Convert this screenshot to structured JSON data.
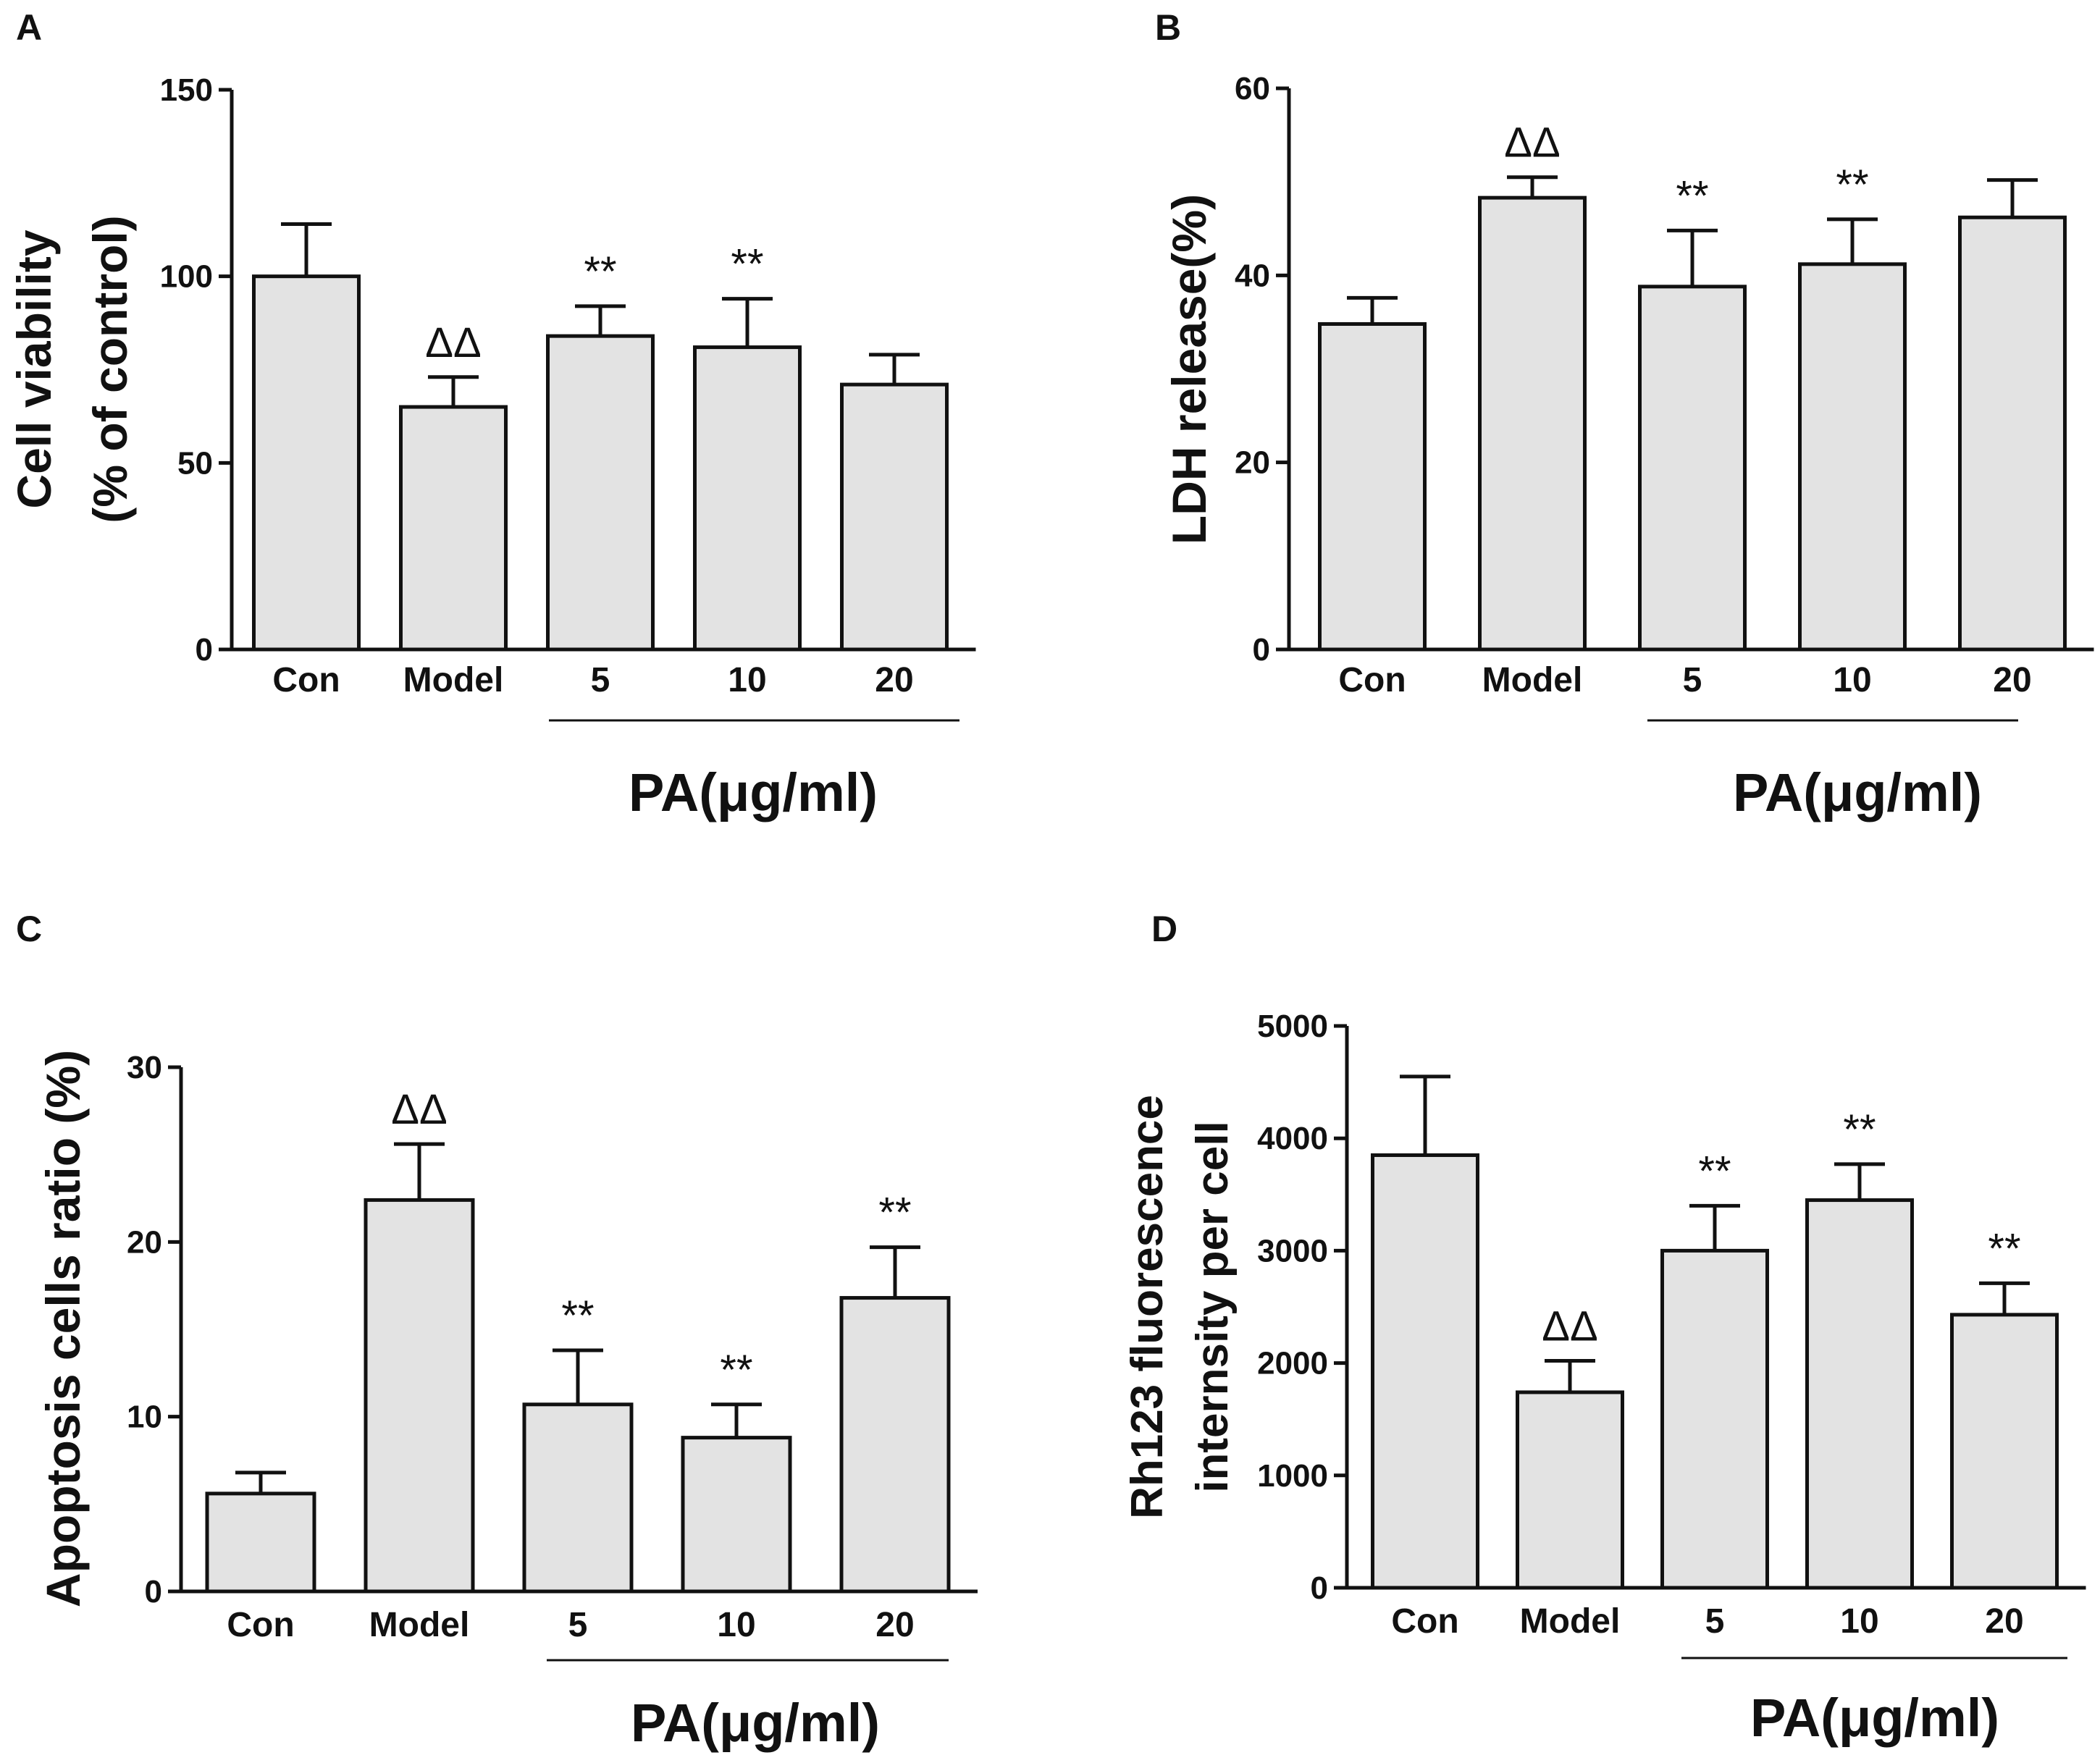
{
  "chart_data": [
    {
      "id": "A",
      "type": "bar",
      "panel_label": "A",
      "ylabel_lines": [
        "Cell viability",
        "(% of control)"
      ],
      "categories": [
        "Con",
        "Model",
        "5",
        "10",
        "20"
      ],
      "values": [
        100,
        65,
        84,
        81,
        71
      ],
      "errors": [
        14,
        8,
        8,
        13,
        8
      ],
      "annotations": [
        "",
        "ΔΔ",
        "**",
        "**",
        ""
      ],
      "ylim": [
        0,
        150
      ],
      "yticks": [
        0,
        50,
        100,
        150
      ],
      "group_label": "PA(μg/ml)"
    },
    {
      "id": "B",
      "type": "bar",
      "panel_label": "B",
      "ylabel_lines": [
        "LDH release(%)"
      ],
      "categories": [
        "Con",
        "Model",
        "5",
        "10",
        "20"
      ],
      "values": [
        34.8,
        48.3,
        38.8,
        41.2,
        46.2
      ],
      "errors": [
        2.8,
        2.2,
        6.0,
        4.8,
        4.0
      ],
      "annotations": [
        "",
        "ΔΔ",
        "**",
        "**",
        ""
      ],
      "ylim": [
        0,
        60
      ],
      "yticks": [
        0,
        20,
        40,
        60
      ],
      "group_label": "PA(μg/ml)"
    },
    {
      "id": "C",
      "type": "bar",
      "panel_label": "C",
      "ylabel_lines": [
        "Apoptosis cells ratio (%)"
      ],
      "categories": [
        "Con",
        "Model",
        "5",
        "10",
        "20"
      ],
      "values": [
        5.6,
        22.4,
        10.7,
        8.8,
        16.8
      ],
      "errors": [
        1.2,
        3.2,
        3.1,
        1.9,
        2.9
      ],
      "annotations": [
        "",
        "ΔΔ",
        "**",
        "**",
        "**"
      ],
      "ylim": [
        0,
        30
      ],
      "yticks": [
        0,
        10,
        20,
        30
      ],
      "group_label": "PA(μg/ml)"
    },
    {
      "id": "D",
      "type": "bar",
      "panel_label": "D",
      "ylabel_lines": [
        "Rh123 fluorescence",
        "internsity per cell"
      ],
      "categories": [
        "Con",
        "Model",
        "5",
        "10",
        "20"
      ],
      "values": [
        3850,
        1740,
        3000,
        3450,
        2430
      ],
      "errors": [
        700,
        280,
        400,
        320,
        280
      ],
      "annotations": [
        "",
        "ΔΔ",
        "**",
        "**",
        "**"
      ],
      "ylim": [
        0,
        5000
      ],
      "yticks": [
        0,
        1000,
        2000,
        3000,
        4000,
        5000
      ],
      "group_label": "PA(μg/ml)"
    }
  ]
}
